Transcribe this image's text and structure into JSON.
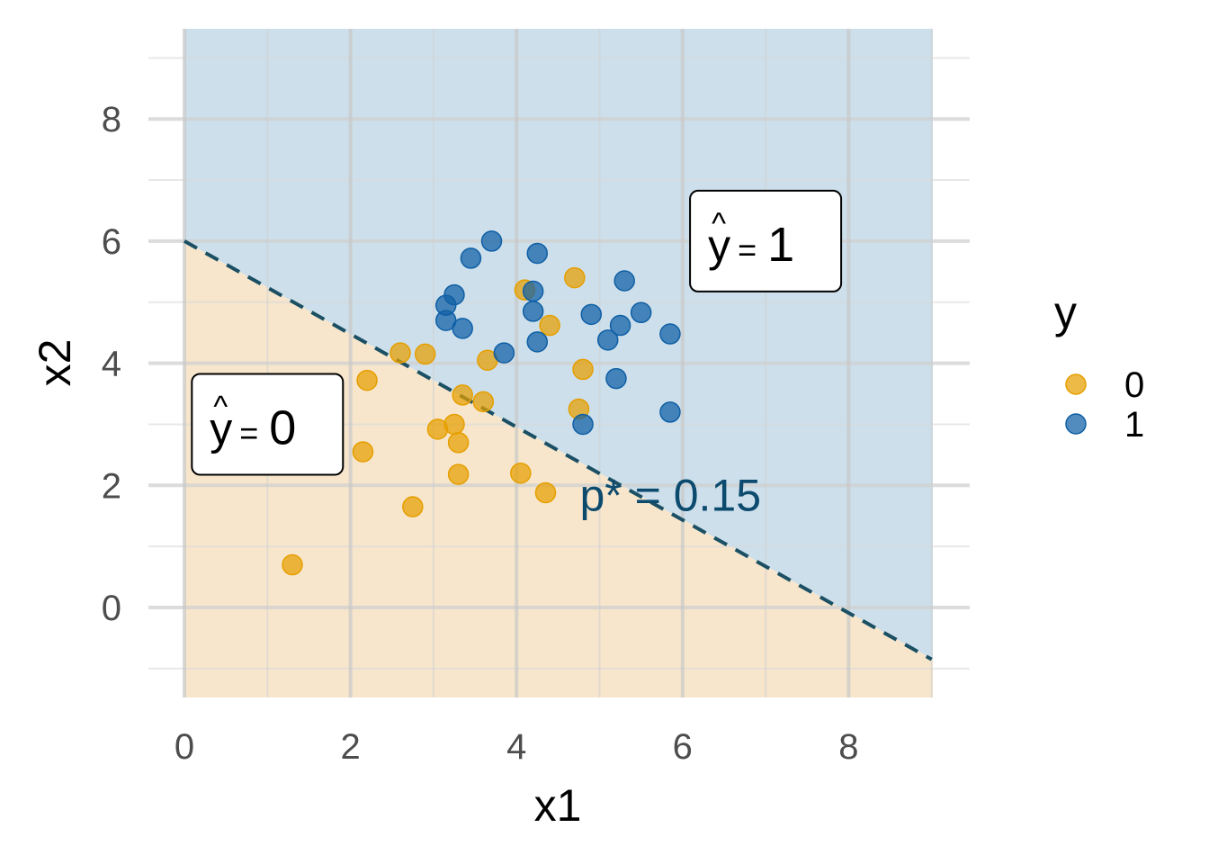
{
  "chart_data": {
    "type": "scatter",
    "xlabel": "x1",
    "ylabel": "x2",
    "xlim": [
      0,
      9
    ],
    "ylim": [
      -1.45,
      9.5
    ],
    "x_ticks": [
      0,
      2,
      4,
      6,
      8
    ],
    "y_ticks": [
      0,
      2,
      4,
      6,
      8
    ],
    "x_tick_labels": [
      "0",
      "2",
      "4",
      "6",
      "8"
    ],
    "y_tick_labels": [
      "0",
      "2",
      "4",
      "6",
      "8"
    ],
    "grid": true,
    "legend": {
      "title": "y",
      "placement": "right",
      "entries": [
        {
          "label": "0",
          "color": "#E69F00"
        },
        {
          "label": "1",
          "color": "#0F5FA5"
        }
      ]
    },
    "regions": [
      {
        "label": "ŷ = 0",
        "color": "#F7E6CC",
        "side": "below"
      },
      {
        "label": "ŷ = 1",
        "color": "#CCDFEB",
        "side": "above"
      }
    ],
    "decision_boundary": {
      "x": [
        0,
        9
      ],
      "y": [
        6.0,
        -0.85
      ],
      "style": "dashed",
      "color": "#1B4F63",
      "label": "p* = 0.15",
      "label_color": "#0C4A6E"
    },
    "annotations": [
      {
        "text": "0",
        "hat": "y",
        "x": 1.0,
        "y": 3.0
      },
      {
        "text": "1",
        "hat": "y",
        "x": 7.0,
        "y": 6.0
      },
      {
        "text": "p* = 0.15",
        "x": 6.3,
        "y": 1.85
      }
    ],
    "series": [
      {
        "name": "0",
        "color": "#E69F00",
        "points": [
          [
            1.3,
            0.7
          ],
          [
            2.15,
            2.55
          ],
          [
            2.2,
            3.72
          ],
          [
            2.75,
            1.65
          ],
          [
            3.05,
            2.92
          ],
          [
            3.25,
            3.0
          ],
          [
            3.3,
            2.7
          ],
          [
            3.3,
            2.18
          ],
          [
            3.35,
            3.48
          ],
          [
            3.6,
            3.37
          ],
          [
            2.6,
            4.17
          ],
          [
            2.9,
            4.15
          ],
          [
            3.65,
            4.05
          ],
          [
            4.05,
            2.2
          ],
          [
            4.35,
            1.88
          ],
          [
            4.1,
            5.2
          ],
          [
            4.4,
            4.62
          ],
          [
            4.7,
            5.4
          ],
          [
            4.8,
            3.9
          ],
          [
            4.75,
            3.25
          ]
        ]
      },
      {
        "name": "1",
        "color": "#0F5FA5",
        "points": [
          [
            3.15,
            4.95
          ],
          [
            3.15,
            4.7
          ],
          [
            3.25,
            5.12
          ],
          [
            3.35,
            4.57
          ],
          [
            3.45,
            5.72
          ],
          [
            3.7,
            6.0
          ],
          [
            3.85,
            4.17
          ],
          [
            4.25,
            5.8
          ],
          [
            4.2,
            5.18
          ],
          [
            4.2,
            4.85
          ],
          [
            4.25,
            4.35
          ],
          [
            4.8,
            3.0
          ],
          [
            4.9,
            4.8
          ],
          [
            5.1,
            4.38
          ],
          [
            5.2,
            3.75
          ],
          [
            5.25,
            4.62
          ],
          [
            5.3,
            5.35
          ],
          [
            5.5,
            4.83
          ],
          [
            5.85,
            4.48
          ],
          [
            5.85,
            3.2
          ]
        ]
      }
    ]
  }
}
